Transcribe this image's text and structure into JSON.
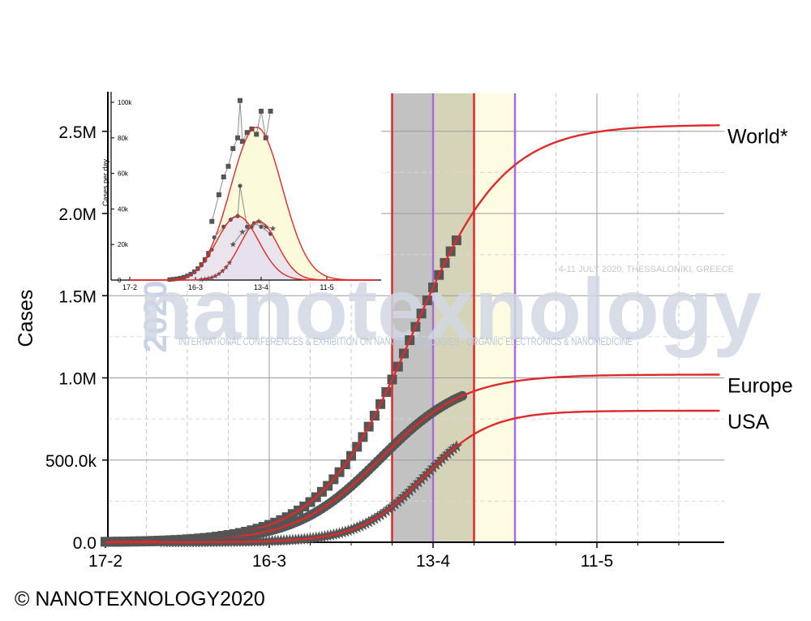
{
  "footer": {
    "text": "© NANOTEXNOLOGY2020"
  },
  "watermark": {
    "year": "2020",
    "word": "nanotexnology",
    "tagline": "INTERNATIONAL CONFERENCES & EXHIBITION ON NANOTECHNOLOGIES - ORGANIC ELECTRONICS & NANOMEDICINE",
    "dates": "4-11 JULY 2020, THESSALONIKI, GREECE"
  },
  "colors": {
    "fit_line": "#dd2a2a",
    "marker": "#555555",
    "band_gray": "#c2c2c2",
    "band_olive": "#d6d4b8",
    "band_cream": "#fdfbe2",
    "purple_line": "#a76be0",
    "inset_fill_world": "#fbfbdc",
    "inset_fill_small": "#e6def0"
  },
  "chart_data": [
    {
      "type": "line",
      "ylabel": "Cases",
      "xlabel": "",
      "x_ticks": [
        "17-2",
        "16-3",
        "13-4",
        "11-5"
      ],
      "x_tick_days": [
        0,
        28,
        56,
        84
      ],
      "y_ticks": [
        "0.0",
        "500.0k",
        "1.0M",
        "1.5M",
        "2.0M",
        "2.5M"
      ],
      "y_tick_values": [
        0,
        500000,
        1000000,
        1500000,
        2000000,
        2500000
      ],
      "xlim_days": [
        0,
        105
      ],
      "ylim": [
        0,
        2750000
      ],
      "grid": true,
      "bands": [
        {
          "from_day": 49,
          "to_day": 56,
          "color": "gray"
        },
        {
          "from_day": 56,
          "to_day": 63,
          "color": "olive"
        },
        {
          "from_day": 63,
          "to_day": 70,
          "color": "cream"
        }
      ],
      "vlines": [
        {
          "day": 49,
          "color": "red"
        },
        {
          "day": 56,
          "color": "purple"
        },
        {
          "day": 63,
          "color": "red"
        },
        {
          "day": 70,
          "color": "purple"
        }
      ],
      "series": [
        {
          "name": "World*",
          "marker": "square",
          "fit": {
            "model": "logistic",
            "max": 2540000,
            "midpoint_day": 52.5,
            "rate": 0.128
          },
          "data_days": [
            0,
            60
          ]
        },
        {
          "name": "Europe",
          "marker": "circle",
          "fit": {
            "model": "logistic",
            "max": 1020000,
            "midpoint_day": 47,
            "rate": 0.138
          },
          "data_days": [
            0,
            61
          ]
        },
        {
          "name": "USA",
          "marker": "star",
          "fit": {
            "model": "logistic",
            "max": 800000,
            "midpoint_day": 54.5,
            "rate": 0.18
          },
          "data_days": [
            10,
            60
          ]
        }
      ]
    },
    {
      "type": "line",
      "ylabel": "Cases per day",
      "xlabel": "",
      "x_ticks": [
        "17-2",
        "16-3",
        "13-4",
        "11-5"
      ],
      "x_tick_days": [
        0,
        28,
        56,
        84
      ],
      "y_ticks": [
        "0",
        "20k",
        "40k",
        "60k",
        "80k",
        "100k"
      ],
      "y_tick_values": [
        0,
        20000,
        40000,
        60000,
        80000,
        100000
      ],
      "xlim_days": [
        0,
        105
      ],
      "ylim": [
        0,
        105000
      ],
      "series": [
        {
          "name": "World*",
          "marker": "square",
          "fit": {
            "model": "gaussian",
            "peak": 86000,
            "center_day": 54,
            "sigma": 11
          },
          "daily_values": [
            {
              "day": 35,
              "value": 33000
            },
            {
              "day": 38,
              "value": 48000
            },
            {
              "day": 40,
              "value": 58000
            },
            {
              "day": 42,
              "value": 64000
            },
            {
              "day": 44,
              "value": 74000
            },
            {
              "day": 46,
              "value": 80000
            },
            {
              "day": 47,
              "value": 101000
            },
            {
              "day": 48,
              "value": 78000
            },
            {
              "day": 50,
              "value": 83000
            },
            {
              "day": 52,
              "value": 85000
            },
            {
              "day": 54,
              "value": 82000
            },
            {
              "day": 56,
              "value": 95000
            },
            {
              "day": 58,
              "value": 80000
            },
            {
              "day": 60,
              "value": 95000
            }
          ]
        },
        {
          "name": "Europe",
          "marker": "circle",
          "fit": {
            "model": "gaussian",
            "peak": 36000,
            "center_day": 46,
            "sigma": 9
          },
          "daily_values": [
            {
              "day": 36,
              "value": 24000
            },
            {
              "day": 40,
              "value": 30000
            },
            {
              "day": 43,
              "value": 34000
            },
            {
              "day": 46,
              "value": 36000
            },
            {
              "day": 47,
              "value": 53000
            },
            {
              "day": 50,
              "value": 30000
            },
            {
              "day": 53,
              "value": 32000
            },
            {
              "day": 56,
              "value": 30000
            },
            {
              "day": 60,
              "value": 26000
            }
          ]
        },
        {
          "name": "USA",
          "marker": "star",
          "fit": {
            "model": "gaussian",
            "peak": 33000,
            "center_day": 55,
            "sigma": 8
          },
          "daily_values": [
            {
              "day": 44,
              "value": 20000
            },
            {
              "day": 48,
              "value": 27000
            },
            {
              "day": 52,
              "value": 30000
            },
            {
              "day": 55,
              "value": 33000
            },
            {
              "day": 58,
              "value": 30000
            },
            {
              "day": 61,
              "value": 29000
            }
          ]
        }
      ]
    }
  ]
}
